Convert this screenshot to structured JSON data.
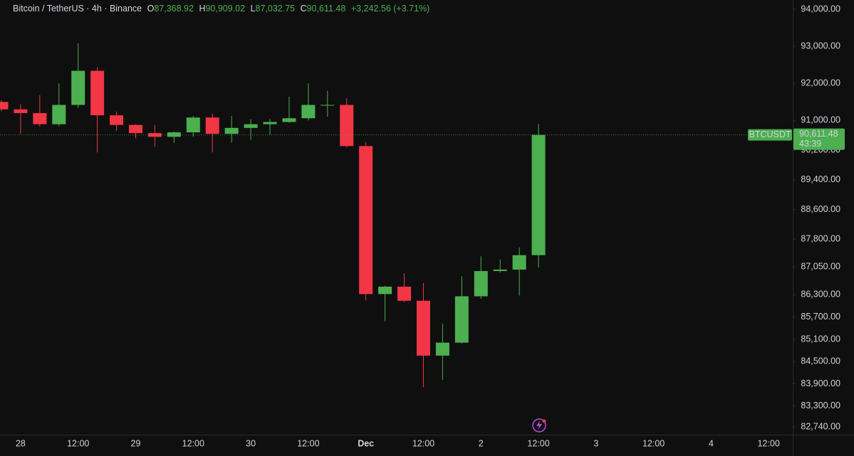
{
  "chart_data": {
    "type": "candlestick",
    "legend": {
      "symbol": "Bitcoin / TetherUS · 4h · Binance",
      "open_label": "O",
      "open": "87,368.92",
      "high_label": "H",
      "high": "90,909.02",
      "low_label": "L",
      "low": "87,032.75",
      "close_label": "C",
      "close": "90,611.48",
      "change": "+3,242.56 (+3.71%)"
    },
    "price_tag": {
      "symbol": "BTCUSDT",
      "price": "90,611.48",
      "countdown": "43:39"
    },
    "up_color": "#4caf50",
    "down_color": "#f23645",
    "categories": [
      null,
      "28",
      null,
      null,
      "12:00",
      null,
      null,
      "29",
      null,
      null,
      "12:00",
      null,
      null,
      "30",
      null,
      null,
      "12:00",
      null,
      null,
      "Dec",
      null,
      null,
      "12:00",
      null,
      null,
      "2",
      null,
      null,
      "12:00",
      null,
      null,
      "3",
      null,
      null,
      "12:00",
      null,
      null,
      "4",
      null,
      null,
      "12:00"
    ],
    "open": [
      91500,
      91300,
      91200,
      90900,
      91420,
      92340,
      91140,
      90880,
      90660,
      90560,
      90680,
      91080,
      90640,
      90800,
      90900,
      90960,
      91060,
      91400,
      91420,
      90310,
      86320,
      86520,
      86140,
      84660,
      85010,
      86260,
      86940,
      86980,
      87368.92,
      null,
      null,
      null,
      null,
      null,
      null,
      null,
      null,
      null,
      null,
      null,
      null
    ],
    "high": [
      91550,
      91440,
      91680,
      92000,
      93080,
      92440,
      91240,
      90900,
      90880,
      90700,
      91120,
      91180,
      91120,
      91040,
      91040,
      91640,
      92000,
      91800,
      91600,
      90420,
      86540,
      86880,
      86620,
      85520,
      86800,
      87340,
      87250,
      87580,
      90909.02,
      null,
      null,
      null,
      null,
      null,
      null,
      null,
      null,
      null,
      null,
      null,
      null
    ],
    "low": [
      91250,
      90640,
      90840,
      90840,
      91340,
      90140,
      90720,
      90520,
      90300,
      90400,
      90560,
      90140,
      90400,
      90480,
      90620,
      90940,
      91000,
      91100,
      90280,
      86150,
      85590,
      86100,
      83810,
      84010,
      84990,
      86190,
      86900,
      86280,
      87032.75,
      null,
      null,
      null,
      null,
      null,
      null,
      null,
      null,
      null,
      null,
      null,
      null
    ],
    "close": [
      91300,
      91200,
      90900,
      91420,
      92340,
      91140,
      90880,
      90660,
      90560,
      90680,
      91080,
      90640,
      90800,
      90900,
      90960,
      91060,
      91420,
      91420,
      90310,
      86320,
      86520,
      86140,
      84660,
      85010,
      86260,
      86940,
      86980,
      87368.92,
      90611.48,
      null,
      null,
      null,
      null,
      null,
      null,
      null,
      null,
      null,
      null,
      null,
      null
    ],
    "ylim": [
      82529,
      94249
    ],
    "yticks": [
      {
        "value": 94000,
        "label": "94,000.00"
      },
      {
        "value": 93000,
        "label": "93,000.00"
      },
      {
        "value": 92000,
        "label": "92,000.00"
      },
      {
        "value": 91000,
        "label": "91,000.00"
      },
      {
        "value": 90200,
        "label": "90,200.00"
      },
      {
        "value": 89400,
        "label": "89,400.00"
      },
      {
        "value": 88600,
        "label": "88,600.00"
      },
      {
        "value": 87800,
        "label": "87,800.00"
      },
      {
        "value": 87050,
        "label": "87,050.00"
      },
      {
        "value": 86300,
        "label": "86,300.00"
      },
      {
        "value": 85700,
        "label": "85,700.00"
      },
      {
        "value": 85100,
        "label": "85,100.00"
      },
      {
        "value": 84500,
        "label": "84,500.00"
      },
      {
        "value": 83900,
        "label": "83,900.00"
      },
      {
        "value": 83300,
        "label": "83,300.00"
      },
      {
        "value": 82740,
        "label": "82,740.00"
      }
    ]
  }
}
